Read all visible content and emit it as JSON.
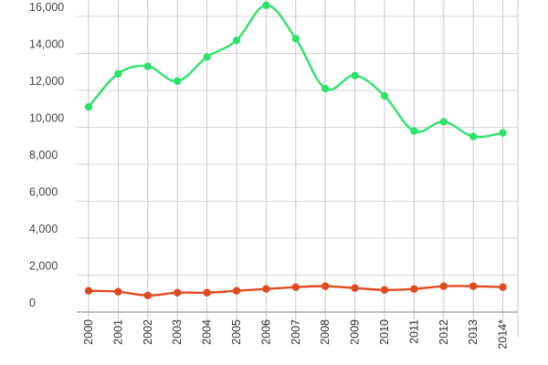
{
  "chart_data": {
    "type": "line",
    "title": "",
    "xlabel": "",
    "ylabel": "",
    "categories": [
      "2000",
      "2001",
      "2002",
      "2003",
      "2004",
      "2005",
      "2006",
      "2007",
      "2008",
      "2009",
      "2010",
      "2011",
      "2012",
      "2013",
      "2014*"
    ],
    "y_ticks": [
      "0",
      "2,000",
      "4,000",
      "6,000",
      "8,000",
      "10,000",
      "12,000",
      "14,000",
      "16,000"
    ],
    "ylim": [
      0,
      16700
    ],
    "grid": true,
    "legend": "none",
    "series": [
      {
        "color": "#2ee36b",
        "values": [
          11100,
          12900,
          13300,
          12500,
          13800,
          14700,
          16600,
          14800,
          12100,
          12800,
          11700,
          9800,
          10300,
          9500,
          9700
        ]
      },
      {
        "color": "#e04a1f",
        "values": [
          1150,
          1100,
          900,
          1050,
          1050,
          1150,
          1250,
          1350,
          1400,
          1300,
          1200,
          1250,
          1400,
          1400,
          1350
        ]
      }
    ]
  }
}
